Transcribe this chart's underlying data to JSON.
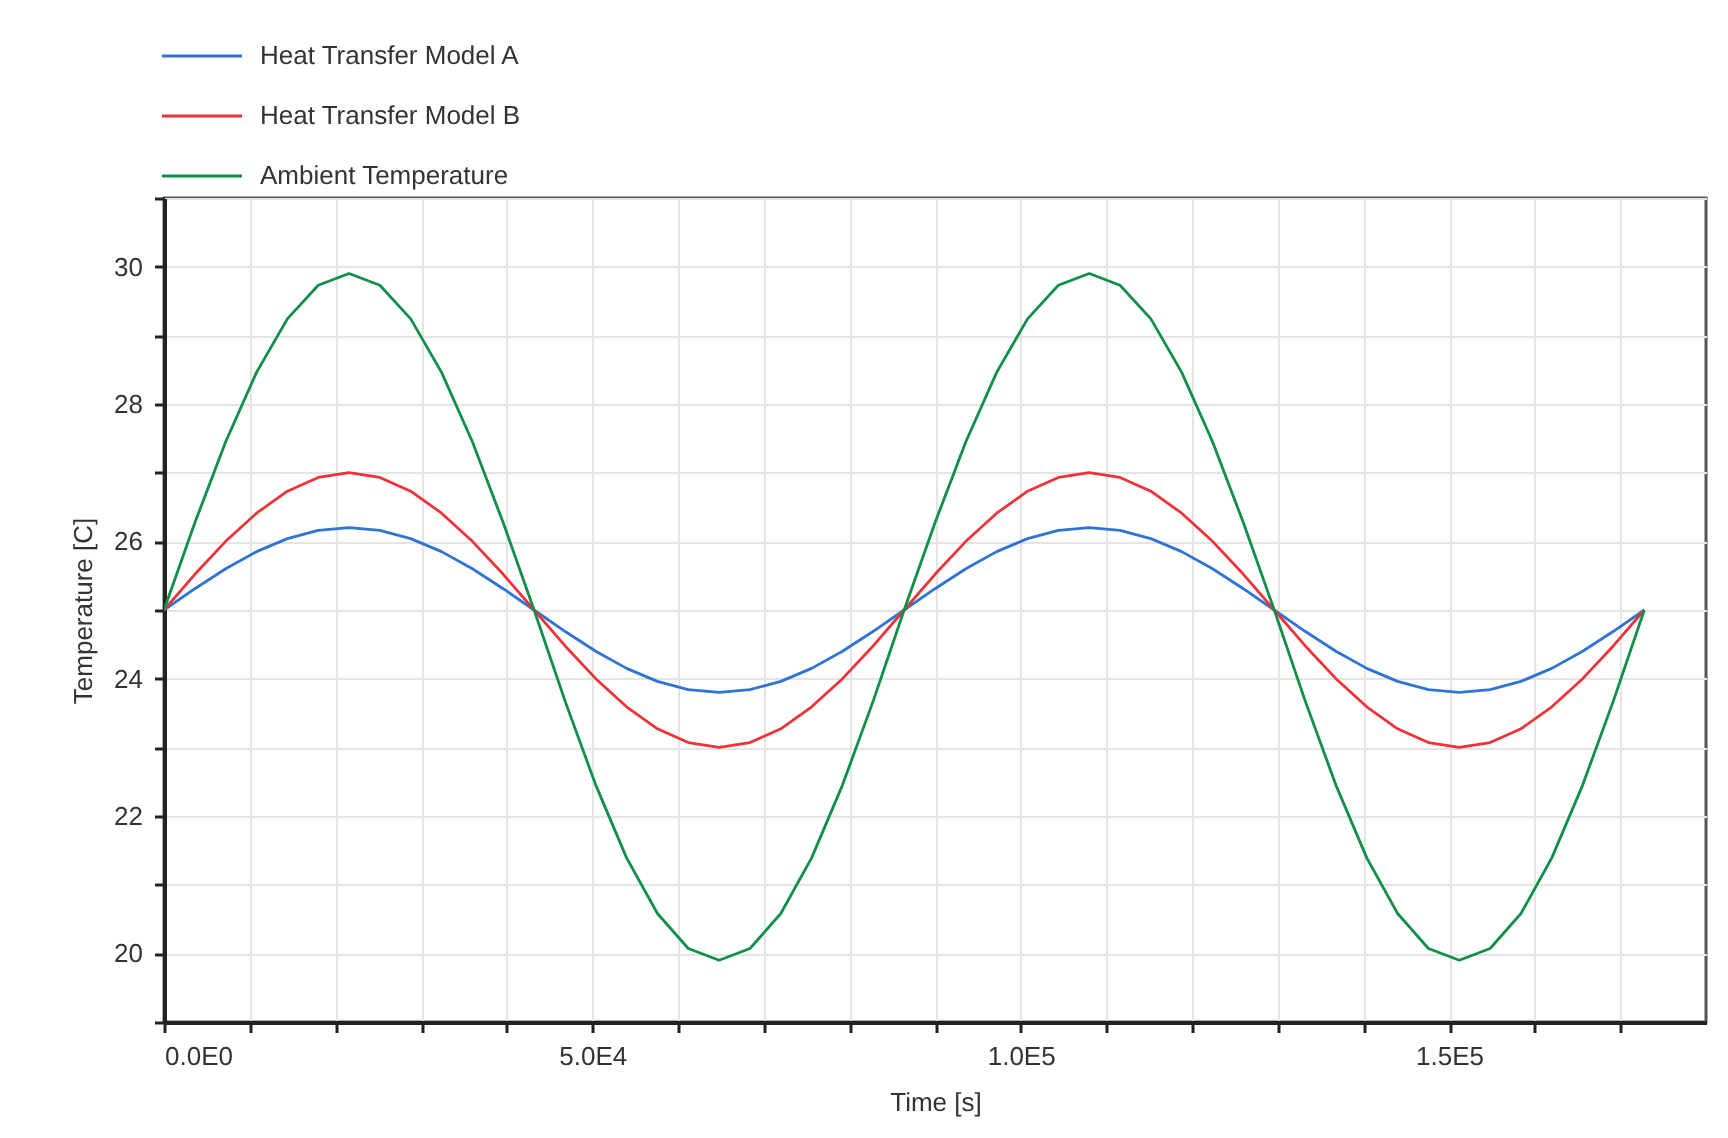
{
  "chart_data": {
    "type": "line",
    "xlabel": "Time [s]",
    "ylabel": "Temperature [C]",
    "x": [
      0,
      3600,
      7200,
      10800,
      14400,
      18000,
      21600,
      25200,
      28800,
      32400,
      36000,
      39600,
      43200,
      46800,
      50400,
      54000,
      57600,
      61200,
      64800,
      68400,
      72000,
      75600,
      79200,
      82800,
      86400,
      90000,
      93600,
      97200,
      100800,
      104400,
      108000,
      111600,
      115200,
      118800,
      122400,
      126000,
      129600,
      133200,
      136800,
      140400,
      144000,
      147600,
      151200,
      154800,
      158400,
      162000,
      165600,
      169200,
      172800
    ],
    "series": [
      {
        "name": "Heat Transfer Model A",
        "color": "#2f74d4",
        "values": [
          25,
          25.31,
          25.6,
          25.85,
          26.04,
          26.16,
          26.2,
          26.16,
          26.04,
          25.85,
          25.6,
          25.31,
          25,
          24.69,
          24.4,
          24.15,
          23.96,
          23.84,
          23.8,
          23.84,
          23.96,
          24.15,
          24.4,
          24.69,
          25,
          25.31,
          25.6,
          25.85,
          26.04,
          26.16,
          26.2,
          26.16,
          26.04,
          25.85,
          25.6,
          25.31,
          25,
          24.69,
          24.4,
          24.15,
          23.96,
          23.84,
          23.8,
          23.84,
          23.96,
          24.15,
          24.4,
          24.69,
          25
        ]
      },
      {
        "name": "Heat Transfer Model B",
        "color": "#ee3338",
        "values": [
          25,
          25.52,
          26,
          26.41,
          26.73,
          26.93,
          27,
          26.93,
          26.73,
          26.41,
          26,
          25.52,
          25,
          24.48,
          24,
          23.59,
          23.27,
          23.07,
          23,
          23.07,
          23.27,
          23.59,
          24,
          24.48,
          25,
          25.52,
          26,
          26.41,
          26.73,
          26.93,
          27,
          26.93,
          26.73,
          26.41,
          26,
          25.52,
          25,
          24.48,
          24,
          23.59,
          23.27,
          23.07,
          23,
          23.07,
          23.27,
          23.59,
          24,
          24.48,
          25
        ]
      },
      {
        "name": "Ambient Temperature",
        "color": "#0f8f48",
        "values": [
          25,
          26.27,
          27.45,
          28.46,
          29.24,
          29.73,
          29.9,
          29.73,
          29.24,
          28.46,
          27.45,
          26.27,
          25,
          23.68,
          22.45,
          21.39,
          20.58,
          20.07,
          19.9,
          20.07,
          20.58,
          21.39,
          22.45,
          23.68,
          25,
          26.27,
          27.45,
          28.46,
          29.24,
          29.73,
          29.9,
          29.73,
          29.24,
          28.46,
          27.45,
          26.27,
          25,
          23.68,
          22.45,
          21.39,
          20.58,
          20.07,
          19.9,
          20.07,
          20.58,
          21.39,
          22.45,
          23.68,
          25
        ]
      }
    ],
    "xlim": [
      0,
      180000
    ],
    "xticks": [
      {
        "value": 0,
        "label": "0.0E0"
      },
      {
        "value": 10000,
        "label": null
      },
      {
        "value": 20000,
        "label": null
      },
      {
        "value": 30000,
        "label": null
      },
      {
        "value": 40000,
        "label": null
      },
      {
        "value": 50000,
        "label": "5.0E4"
      },
      {
        "value": 60000,
        "label": null
      },
      {
        "value": 70000,
        "label": null
      },
      {
        "value": 80000,
        "label": null
      },
      {
        "value": 90000,
        "label": null
      },
      {
        "value": 100000,
        "label": "1.0E5"
      },
      {
        "value": 110000,
        "label": null
      },
      {
        "value": 120000,
        "label": null
      },
      {
        "value": 130000,
        "label": null
      },
      {
        "value": 140000,
        "label": null
      },
      {
        "value": 150000,
        "label": "1.5E5"
      },
      {
        "value": 160000,
        "label": null
      },
      {
        "value": 170000,
        "label": null
      }
    ],
    "ylim": [
      19,
      31
    ],
    "yticks": [
      {
        "value": 19,
        "label": null
      },
      20,
      {
        "value": 21,
        "label": null
      },
      22,
      {
        "value": 23,
        "label": null
      },
      24,
      {
        "value": 25,
        "label": null
      },
      26,
      {
        "value": 27,
        "label": null
      },
      28,
      {
        "value": 29,
        "label": null
      },
      30,
      {
        "value": 31,
        "label": null
      }
    ],
    "grid": true,
    "legend": "top left",
    "line_style": "solid"
  }
}
